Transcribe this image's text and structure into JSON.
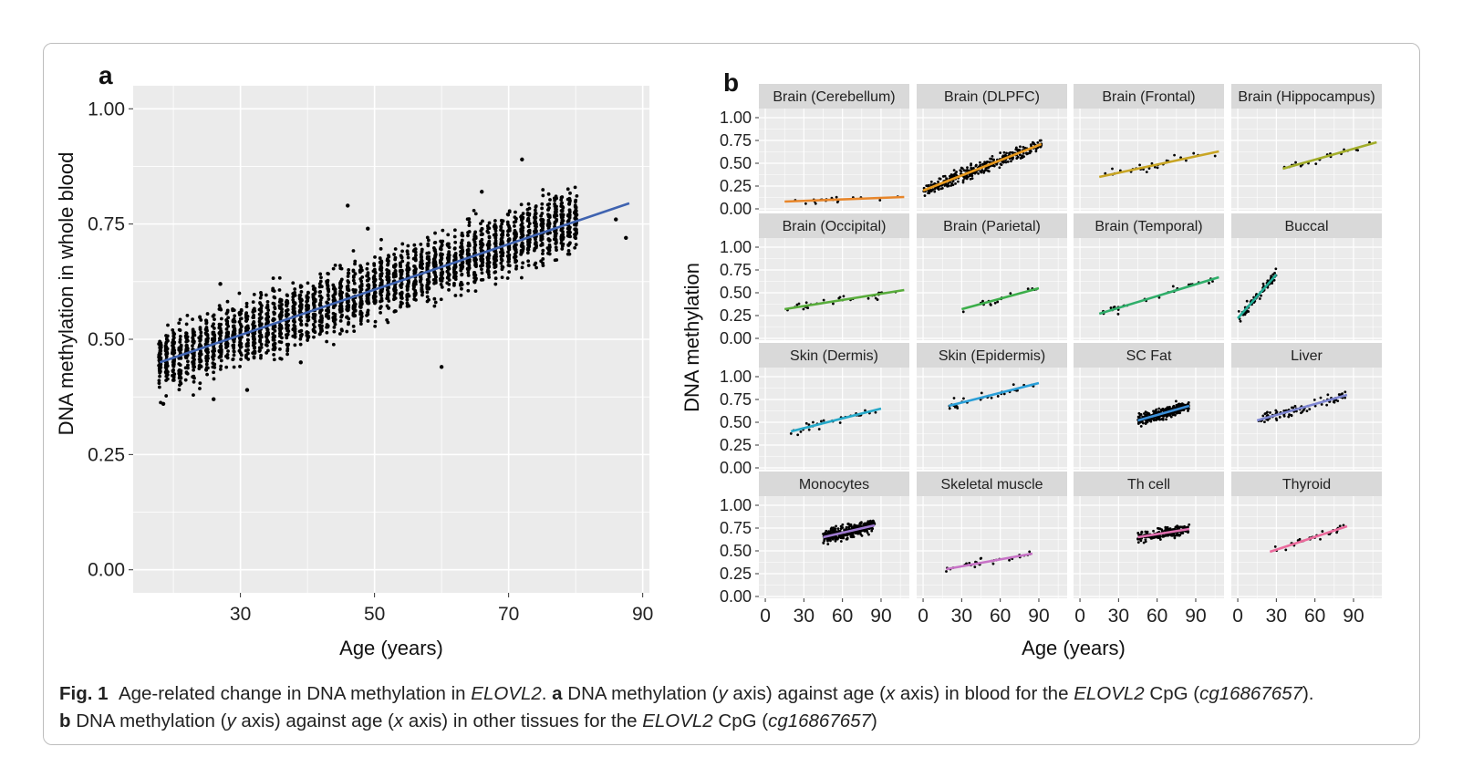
{
  "caption": {
    "fig_label": "Fig. 1",
    "line1_a": "Age-related change in DNA methylation in ",
    "gene": "ELOVL2",
    "line1_b": ". ",
    "panel_a_label": "a",
    "line1_c": " DNA methylation (",
    "y_word": "y",
    "line1_d": " axis) against age (",
    "x_word": "x",
    "line1_e": " axis) in blood for the ",
    "line1_f": " CpG (",
    "cpg": "cg16867657",
    "line1_g": ").",
    "panel_b_label": "b",
    "line2_a": " DNA methylation (",
    "line2_b": " axis) against age (",
    "line2_c": " axis) in other tissues for the ",
    "line2_d": " CpG (",
    "line2_e": ")"
  },
  "colors": {
    "panel_bg": "#ebebeb",
    "grid": "#ffffff",
    "strip_bg": "#d9d9d9",
    "blood_line": "#3f63b0",
    "point": "#000000"
  },
  "chart_data": [
    {
      "type": "scatter",
      "panel_label": "a",
      "title": "",
      "xlabel": "Age (years)",
      "ylabel": "DNA methylation in whole blood",
      "xlim": [
        14,
        91
      ],
      "ylim": [
        -0.05,
        1.05
      ],
      "xticks": [
        30,
        50,
        70,
        90
      ],
      "yticks": [
        0.0,
        0.25,
        0.5,
        0.75,
        1.0
      ],
      "ytick_labels": [
        "0.00",
        "0.25",
        "0.50",
        "0.75",
        "1.00"
      ],
      "grid": true,
      "series": [
        {
          "fit_line": {
            "x": [
              18,
              88
            ],
            "y": [
              0.45,
              0.795
            ]
          },
          "points_range": {
            "x": [
              18,
              80
            ],
            "y_at_min_x": 0.45,
            "y_at_max_x": 0.76,
            "spread": 0.06
          },
          "outliers": [
            {
              "x": 26,
              "y": 0.37
            },
            {
              "x": 27,
              "y": 0.62
            },
            {
              "x": 31,
              "y": 0.39
            },
            {
              "x": 39,
              "y": 0.45
            },
            {
              "x": 46,
              "y": 0.79
            },
            {
              "x": 49,
              "y": 0.74
            },
            {
              "x": 60,
              "y": 0.44
            },
            {
              "x": 66,
              "y": 0.82
            },
            {
              "x": 72,
              "y": 0.89
            },
            {
              "x": 86,
              "y": 0.76
            },
            {
              "x": 87.5,
              "y": 0.72
            },
            {
              "x": 18.5,
              "y": 0.36
            }
          ]
        }
      ]
    },
    {
      "type": "scatter",
      "panel_label": "b",
      "title": "",
      "xlabel": "Age (years)",
      "ylabel": "DNA methylation",
      "xlim": [
        -5,
        112
      ],
      "ylim": [
        -0.02,
        1.1
      ],
      "xticks": [
        0,
        30,
        60,
        90
      ],
      "yticks": [
        0.0,
        0.25,
        0.5,
        0.75,
        1.0
      ],
      "ytick_labels": [
        "0.00",
        "0.25",
        "0.50",
        "0.75",
        "1.00"
      ],
      "grid": true,
      "facets": [
        {
          "name": "Brain (Cerebellum)",
          "color": "#e8862a",
          "line": {
            "x": [
              15,
              108
            ],
            "y": [
              0.08,
              0.13
            ]
          },
          "x_range": [
            15,
            108
          ],
          "n": 18,
          "spread": 0.03
        },
        {
          "name": "Brain (DLPFC)",
          "color": "#e89a1e",
          "line": {
            "x": [
              0,
              92
            ],
            "y": [
              0.2,
              0.71
            ]
          },
          "x_range": [
            0,
            92
          ],
          "n": 320,
          "spread": 0.06
        },
        {
          "name": "Brain (Frontal)",
          "color": "#c8a524",
          "line": {
            "x": [
              15,
              108
            ],
            "y": [
              0.35,
              0.63
            ]
          },
          "x_range": [
            15,
            108
          ],
          "n": 26,
          "spread": 0.05
        },
        {
          "name": "Brain (Hippocampus)",
          "color": "#a2ad2a",
          "line": {
            "x": [
              35,
              108
            ],
            "y": [
              0.44,
              0.73
            ]
          },
          "x_range": [
            35,
            108
          ],
          "n": 20,
          "spread": 0.04
        },
        {
          "name": "Brain (Occipital)",
          "color": "#58ac3b",
          "line": {
            "x": [
              15,
              108
            ],
            "y": [
              0.32,
              0.53
            ]
          },
          "x_range": [
            15,
            108
          ],
          "n": 30,
          "spread": 0.05
        },
        {
          "name": "Brain (Parietal)",
          "color": "#3cae4a",
          "line": {
            "x": [
              30,
              90
            ],
            "y": [
              0.32,
              0.55
            ]
          },
          "x_range": [
            30,
            90
          ],
          "n": 16,
          "spread": 0.04
        },
        {
          "name": "Brain (Temporal)",
          "color": "#2fae6a",
          "line": {
            "x": [
              15,
              108
            ],
            "y": [
              0.27,
              0.67
            ]
          },
          "x_range": [
            15,
            108
          ],
          "n": 30,
          "spread": 0.04
        },
        {
          "name": "Buccal",
          "color": "#22ad96",
          "line": {
            "x": [
              0,
              30
            ],
            "y": [
              0.22,
              0.7
            ]
          },
          "x_range": [
            0,
            30
          ],
          "n": 80,
          "spread": 0.05
        },
        {
          "name": "Skin (Dermis)",
          "color": "#26a9c9",
          "line": {
            "x": [
              20,
              90
            ],
            "y": [
              0.4,
              0.65
            ]
          },
          "x_range": [
            20,
            90
          ],
          "n": 30,
          "spread": 0.04
        },
        {
          "name": "Skin (Epidermis)",
          "color": "#2a9fd8",
          "line": {
            "x": [
              20,
              90
            ],
            "y": [
              0.68,
              0.93
            ]
          },
          "x_range": [
            20,
            90
          ],
          "n": 30,
          "spread": 0.04
        },
        {
          "name": "SC Fat",
          "color": "#3b8fd8",
          "line": {
            "x": [
              45,
              85
            ],
            "y": [
              0.52,
              0.68
            ]
          },
          "x_range": [
            45,
            85
          ],
          "n": 320,
          "spread": 0.05
        },
        {
          "name": "Liver",
          "color": "#7e86d2",
          "line": {
            "x": [
              15,
              85
            ],
            "y": [
              0.52,
              0.8
            ]
          },
          "x_range": [
            15,
            85
          ],
          "n": 90,
          "spread": 0.05
        },
        {
          "name": "Monocytes",
          "color": "#a07bd3",
          "line": {
            "x": [
              45,
              85
            ],
            "y": [
              0.65,
              0.78
            ]
          },
          "x_range": [
            45,
            85
          ],
          "n": 400,
          "spread": 0.06
        },
        {
          "name": "Skeletal muscle",
          "color": "#c772c6",
          "line": {
            "x": [
              18,
              85
            ],
            "y": [
              0.3,
              0.47
            ]
          },
          "x_range": [
            18,
            85
          ],
          "n": 30,
          "spread": 0.03
        },
        {
          "name": "Th cell",
          "color": "#e06fb0",
          "line": {
            "x": [
              45,
              85
            ],
            "y": [
              0.65,
              0.74
            ]
          },
          "x_range": [
            45,
            85
          ],
          "n": 200,
          "spread": 0.05
        },
        {
          "name": "Thyroid",
          "color": "#eb6a9c",
          "line": {
            "x": [
              25,
              85
            ],
            "y": [
              0.49,
              0.77
            ]
          },
          "x_range": [
            25,
            85
          ],
          "n": 30,
          "spread": 0.04
        }
      ]
    }
  ]
}
